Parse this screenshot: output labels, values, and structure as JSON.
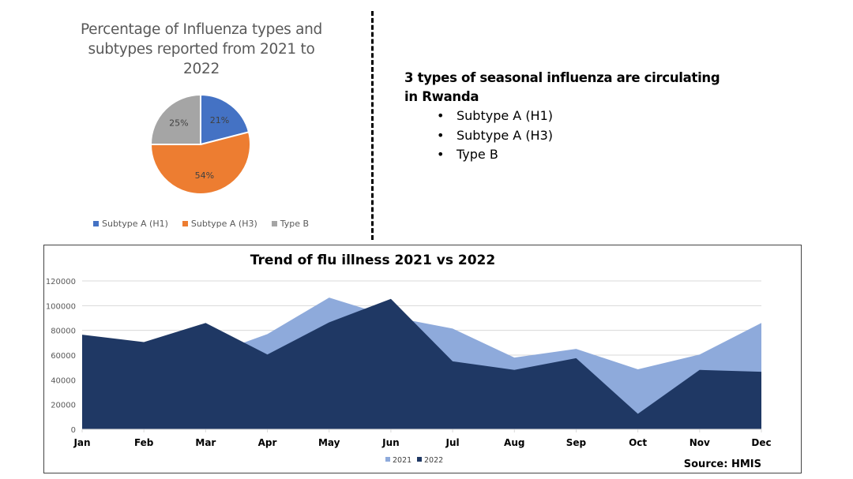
{
  "left_panel": {
    "title_lines": [
      "Percentage of  Influenza types and",
      "subtypes reported from 2021 to",
      "2022"
    ]
  },
  "right_panel": {
    "heading": "3 types of seasonal influenza are circulating in Rwanda",
    "bullets": [
      "Subtype A (H1)",
      "Subtype A (H3)",
      "Type B"
    ]
  },
  "source_label": "Source: HMIS",
  "chart_data": [
    {
      "type": "pie",
      "title": "Percentage of  Influenza types and subtypes reported from 2021 to 2022",
      "categories": [
        "Subtype A (H1)",
        "Subtype A (H3)",
        "Type B"
      ],
      "values": [
        21,
        54,
        25
      ],
      "labels": [
        "21%",
        "54%",
        "25%"
      ],
      "colors": [
        "#4472c4",
        "#ed7d31",
        "#a5a5a5"
      ],
      "legend": "bottom"
    },
    {
      "type": "area",
      "title": "Trend of flu illness 2021 vs 2022",
      "categories": [
        "Jan",
        "Feb",
        "Mar",
        "Apr",
        "May",
        "Jun",
        "Jul",
        "Aug",
        "Sep",
        "Oct",
        "Nov",
        "Dec"
      ],
      "series": [
        {
          "name": "2021",
          "color": "#8eaadb",
          "values": [
            62000,
            58000,
            59000,
            77000,
            106500,
            91000,
            81500,
            58000,
            65000,
            48500,
            60500,
            86000
          ]
        },
        {
          "name": "2022",
          "color": "#1f3864",
          "values": [
            76500,
            70500,
            86000,
            60500,
            86500,
            105500,
            55000,
            48000,
            57500,
            12500,
            48000,
            46500
          ]
        }
      ],
      "yticks": [
        "0",
        "20000",
        "40000",
        "60000",
        "80000",
        "100000",
        "120000"
      ],
      "ylim": [
        0,
        120000
      ],
      "grid": true,
      "legend": "bottom",
      "xlabel": "",
      "ylabel": ""
    }
  ]
}
